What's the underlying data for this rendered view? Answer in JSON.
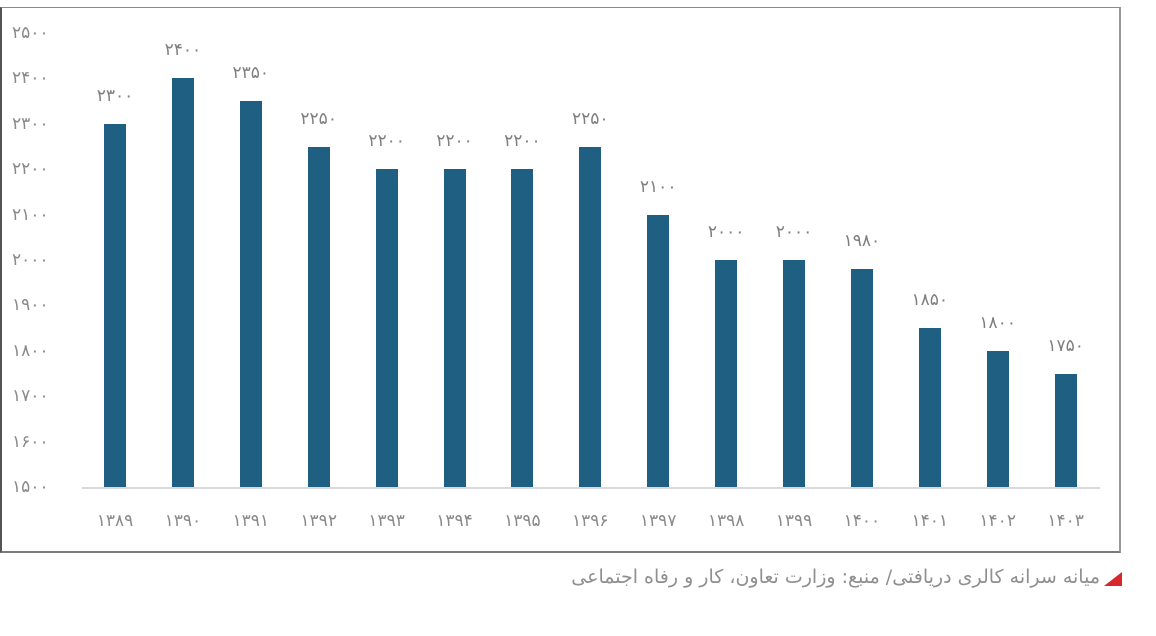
{
  "chart_data": {
    "type": "bar",
    "title": "",
    "xlabel": "",
    "ylabel": "",
    "ylim": [
      1500,
      2500
    ],
    "yticks": [
      1500,
      1600,
      1700,
      1800,
      1900,
      2000,
      2100,
      2200,
      2300,
      2400,
      2500
    ],
    "ytick_labels": [
      "۱۵۰۰",
      "۱۶۰۰",
      "۱۷۰۰",
      "۱۸۰۰",
      "۱۹۰۰",
      "۲۰۰۰",
      "۲۱۰۰",
      "۲۲۰۰",
      "۲۳۰۰",
      "۲۴۰۰",
      "۲۵۰۰"
    ],
    "categories": [
      "۱۳۸۹",
      "۱۳۹۰",
      "۱۳۹۱",
      "۱۳۹۲",
      "۱۳۹۳",
      "۱۳۹۴",
      "۱۳۹۵",
      "۱۳۹۶",
      "۱۳۹۷",
      "۱۳۹۸",
      "۱۳۹۹",
      "۱۴۰۰",
      "۱۴۰۱",
      "۱۴۰۲",
      "۱۴۰۳"
    ],
    "categories_numeric": [
      1389,
      1390,
      1391,
      1392,
      1393,
      1394,
      1395,
      1396,
      1397,
      1398,
      1399,
      1400,
      1401,
      1402,
      1403
    ],
    "values": [
      2300,
      2400,
      2350,
      2250,
      2200,
      2200,
      2200,
      2250,
      2100,
      2000,
      2000,
      1980,
      1850,
      1800,
      1750
    ],
    "value_labels": [
      "۲۳۰۰",
      "۲۴۰۰",
      "۲۳۵۰",
      "۲۲۵۰",
      "۲۲۰۰",
      "۲۲۰۰",
      "۲۲۰۰",
      "۲۲۵۰",
      "۲۱۰۰",
      "۲۰۰۰",
      "۲۰۰۰",
      "۱۹۸۰",
      "۱۸۵۰",
      "۱۸۰۰",
      "۱۷۵۰"
    ],
    "grid": false,
    "legend": null,
    "bar_color": "#1e5f82"
  },
  "caption": {
    "text": "میانه سرانه کالری دریافتی/ منبع: وزارت تعاون، کار و رفاه اجتماعی",
    "marker_color": "#d9262c"
  }
}
